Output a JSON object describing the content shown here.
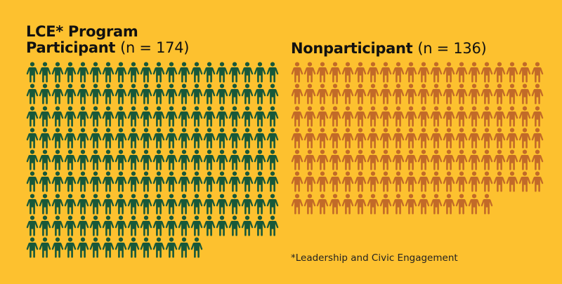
{
  "chart_data": {
    "type": "pictogram",
    "title": "",
    "units_per_icon": 1,
    "icons_per_row": 20,
    "series": [
      {
        "name": "LCE* Program Participant",
        "label_bold": "LCE* Program Participant",
        "label_n": "(n = 174)",
        "value": 174,
        "color": "#17583a",
        "rows": 9,
        "last_row_count": 14
      },
      {
        "name": "Nonparticipant",
        "label_bold": "Nonparticipant",
        "label_n": "(n = 136)",
        "value": 136,
        "color": "#c26a28",
        "rows": 7,
        "last_row_count": 16
      }
    ],
    "annotations": [
      "*Leadership and Civic Engagement"
    ]
  },
  "participant": {
    "title_line1": "LCE* Program",
    "title_line2": "Participant",
    "n_label": "(n = 174)",
    "count": 174,
    "color": "#17583a"
  },
  "nonparticipant": {
    "title": "Nonparticipant",
    "n_label": "(n = 136)",
    "count": 136,
    "color": "#c26a28"
  },
  "footnote": "*Leadership and Civic Engagement",
  "colors": {
    "background": "#fdc12f"
  }
}
